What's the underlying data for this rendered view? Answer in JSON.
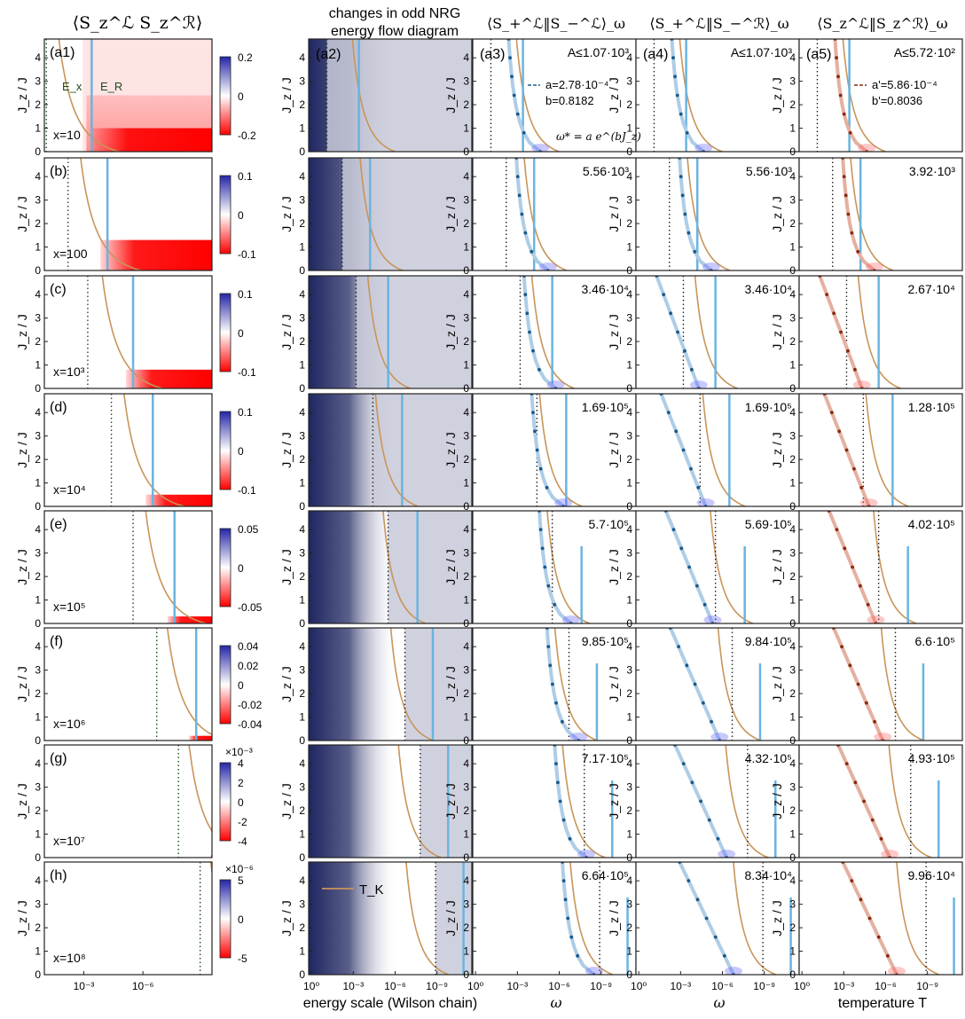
{
  "figure": {
    "column_titles": [
      "⟨S_z^ℒ S_z^ℛ⟩",
      "changes in odd NRG",
      "energy flow diagram",
      "⟨S_+^ℒ‖S_−^ℒ⟩_ω",
      "⟨S_+^ℒ‖S_−^ℛ⟩_ω",
      "⟨S_z^ℒ‖S_z^ℛ⟩_ω"
    ],
    "y_axis_label": "J_z / J",
    "x_axis_labels": [
      "energy scale (Wilson chain)",
      "ω",
      "ω",
      "temperature T"
    ],
    "panel_letters": [
      "(a1)",
      "(a2)",
      "(a3)",
      "(a4)",
      "(a5)"
    ],
    "row_letters": [
      "(a1)",
      "(b)",
      "(c)",
      "(d)",
      "(e)",
      "(f)",
      "(g)",
      "(h)"
    ],
    "x_values": [
      "x=10",
      "x=100",
      "x=10³",
      "x=10⁴",
      "x=10⁵",
      "x=10⁶",
      "x=10⁷",
      "x=10⁸"
    ],
    "a1_markers": [
      "E_x",
      "E_R"
    ],
    "legend_tk": "T_K",
    "fit_a3": {
      "a": "a=2.78·10⁻⁴",
      "b": "b=0.8182",
      "formula": "ω* = a e^(bJ_z)"
    },
    "fit_a5": {
      "a": "a'=5.86·10⁻⁴",
      "b": "b'=0.8036"
    },
    "colorbar_multipliers": [
      "×10⁻³",
      "×10⁻⁶"
    ]
  },
  "chart_data": {
    "type": "heatmap",
    "ylim": [
      0,
      4.8
    ],
    "yticks": [
      0,
      1,
      2,
      3,
      4
    ],
    "xscale": "log",
    "xticks_col1": [
      "10⁻³",
      "10⁻⁶"
    ],
    "xticks_other": [
      "10⁰",
      "10⁻³",
      "10⁻⁶",
      "10⁻⁹"
    ],
    "colorbar_ticks": [
      [
        "0.2",
        "0",
        "-0.2"
      ],
      [
        "0.1",
        "0",
        "-0.1"
      ],
      [
        "0.1",
        "0",
        "-0.1"
      ],
      [
        "0.1",
        "0",
        "-0.1"
      ],
      [
        "0.05",
        "0",
        "-0.05"
      ],
      [
        "0.04",
        "0.02",
        "0",
        "-0.02",
        "-0.04"
      ],
      [
        "4",
        "2",
        "0",
        "-2",
        "-4"
      ],
      [
        "5",
        "0",
        "-5"
      ]
    ],
    "amplitudes": [
      [
        "A≤1.07·10³",
        "A≤1.07·10³",
        "A≤5.72·10²"
      ],
      [
        "5.56·10³",
        "5.56·10³",
        "3.92·10³"
      ],
      [
        "3.46·10⁴",
        "3.46·10⁴",
        "2.67·10⁴"
      ],
      [
        "1.69·10⁵",
        "1.69·10⁵",
        "1.28·10⁵"
      ],
      [
        "5.7·10⁵",
        "5.69·10⁵",
        "4.02·10⁵"
      ],
      [
        "9.85·10⁵",
        "9.84·10⁵",
        "6.6·10⁵"
      ],
      [
        "7.17·10⁵",
        "4.32·10⁵",
        "4.93·10⁵"
      ],
      [
        "6.64·10⁵",
        "8.34·10⁴",
        "9.96·10⁴"
      ]
    ],
    "rows": [
      {
        "E_R_log": -3.4,
        "E_x_log": -1.1,
        "pos_start": -3.2,
        "red_top": 4.8
      },
      {
        "E_R_log": -4.2,
        "E_x_log": -2.2,
        "pos_start": -4.0,
        "red_top": 1.3
      },
      {
        "E_R_log": -5.5,
        "E_x_log": -3.2,
        "pos_start": -5.3,
        "red_top": 0.8
      },
      {
        "E_R_log": -6.5,
        "E_x_log": -4.4,
        "pos_start": -6.3,
        "red_top": 0.5
      },
      {
        "E_R_log": -7.6,
        "E_x_log": -5.5,
        "pos_start": -7.4,
        "red_top": 0.3
      },
      {
        "E_R_log": -8.7,
        "E_x_log": -6.7,
        "pos_start": -8.5,
        "red_top": 0.2
      },
      {
        "E_R_log": -9.8,
        "E_x_log": -7.8,
        "pos_start": -9.6,
        "red_top": 0.1
      },
      {
        "E_R_log": -10.9,
        "E_x_log": -8.9,
        "pos_start": -10.7,
        "red_top": 0.05
      }
    ]
  },
  "colors": {
    "blue": "#2525a8",
    "red": "#ff0000",
    "navy": "#1f2660",
    "shade": "#c8c9d8",
    "tk_curve": "#c8955a",
    "ER_line": "#6ab4e0",
    "dots_blue": "#1a5a8a",
    "dots_red": "#8a2a10",
    "dotted_line": "#1a4d1a"
  }
}
